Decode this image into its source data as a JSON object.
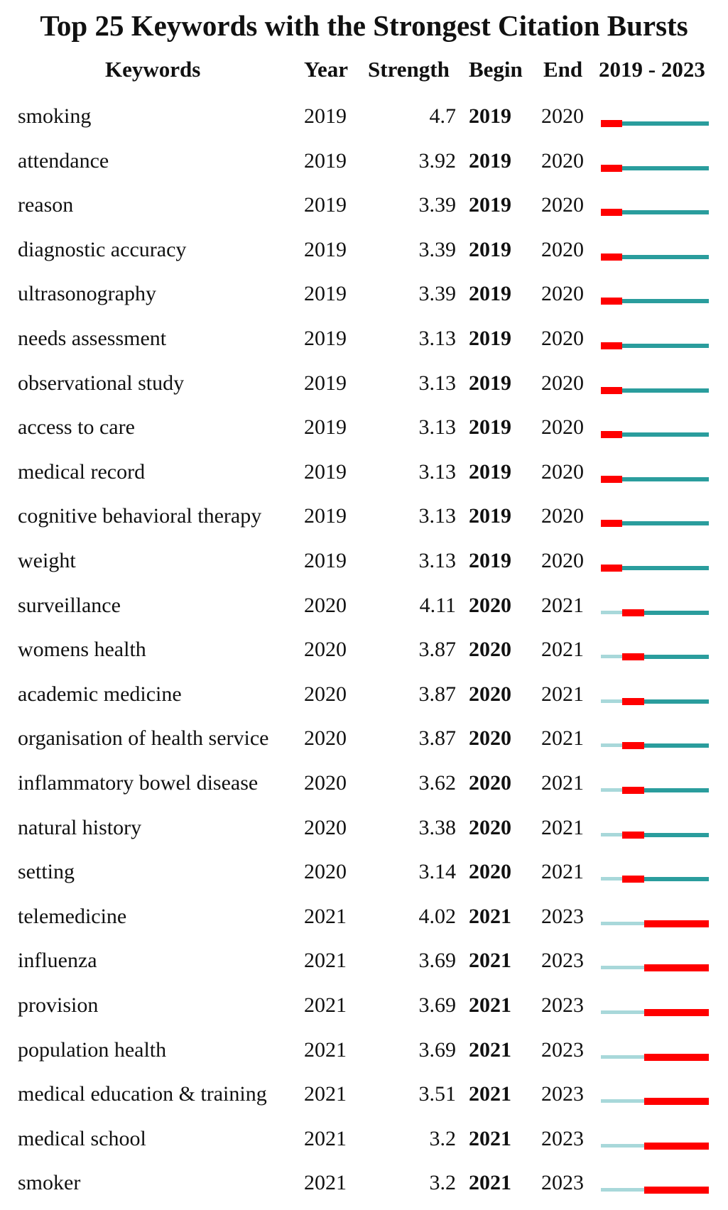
{
  "title": "Top 25 Keywords with the Strongest Citation Bursts",
  "headers": {
    "keywords": "Keywords",
    "year": "Year",
    "strength": "Strength",
    "begin": "Begin",
    "end": "End",
    "range": "2019 - 2023"
  },
  "colors": {
    "burst": "#ff0000",
    "active": "#2a9d9d",
    "inactive": "#a8d8da"
  },
  "chart_data": {
    "type": "table",
    "range": [
      2019,
      2023
    ],
    "rows": [
      {
        "keyword": "smoking",
        "year": "2019",
        "strength": "4.7",
        "begin": "2019",
        "end": "2020"
      },
      {
        "keyword": "attendance",
        "year": "2019",
        "strength": "3.92",
        "begin": "2019",
        "end": "2020"
      },
      {
        "keyword": "reason",
        "year": "2019",
        "strength": "3.39",
        "begin": "2019",
        "end": "2020"
      },
      {
        "keyword": "diagnostic accuracy",
        "year": "2019",
        "strength": "3.39",
        "begin": "2019",
        "end": "2020"
      },
      {
        "keyword": "ultrasonography",
        "year": "2019",
        "strength": "3.39",
        "begin": "2019",
        "end": "2020"
      },
      {
        "keyword": "needs assessment",
        "year": "2019",
        "strength": "3.13",
        "begin": "2019",
        "end": "2020"
      },
      {
        "keyword": "observational study",
        "year": "2019",
        "strength": "3.13",
        "begin": "2019",
        "end": "2020"
      },
      {
        "keyword": "access to care",
        "year": "2019",
        "strength": "3.13",
        "begin": "2019",
        "end": "2020"
      },
      {
        "keyword": "medical record",
        "year": "2019",
        "strength": "3.13",
        "begin": "2019",
        "end": "2020"
      },
      {
        "keyword": "cognitive behavioral therapy",
        "year": "2019",
        "strength": "3.13",
        "begin": "2019",
        "end": "2020"
      },
      {
        "keyword": "weight",
        "year": "2019",
        "strength": "3.13",
        "begin": "2019",
        "end": "2020"
      },
      {
        "keyword": "surveillance",
        "year": "2020",
        "strength": "4.11",
        "begin": "2020",
        "end": "2021"
      },
      {
        "keyword": "womens health",
        "year": "2020",
        "strength": "3.87",
        "begin": "2020",
        "end": "2021"
      },
      {
        "keyword": "academic medicine",
        "year": "2020",
        "strength": "3.87",
        "begin": "2020",
        "end": "2021"
      },
      {
        "keyword": "organisation of health service",
        "year": "2020",
        "strength": "3.87",
        "begin": "2020",
        "end": "2021"
      },
      {
        "keyword": "inflammatory bowel disease",
        "year": "2020",
        "strength": "3.62",
        "begin": "2020",
        "end": "2021"
      },
      {
        "keyword": "natural history",
        "year": "2020",
        "strength": "3.38",
        "begin": "2020",
        "end": "2021"
      },
      {
        "keyword": "setting",
        "year": "2020",
        "strength": "3.14",
        "begin": "2020",
        "end": "2021"
      },
      {
        "keyword": "telemedicine",
        "year": "2021",
        "strength": "4.02",
        "begin": "2021",
        "end": "2023"
      },
      {
        "keyword": "influenza",
        "year": "2021",
        "strength": "3.69",
        "begin": "2021",
        "end": "2023"
      },
      {
        "keyword": "provision",
        "year": "2021",
        "strength": "3.69",
        "begin": "2021",
        "end": "2023"
      },
      {
        "keyword": "population health",
        "year": "2021",
        "strength": "3.69",
        "begin": "2021",
        "end": "2023"
      },
      {
        "keyword": "medical education & training",
        "year": "2021",
        "strength": "3.51",
        "begin": "2021",
        "end": "2023"
      },
      {
        "keyword": "medical school",
        "year": "2021",
        "strength": "3.2",
        "begin": "2021",
        "end": "2023"
      },
      {
        "keyword": "smoker",
        "year": "2021",
        "strength": "3.2",
        "begin": "2021",
        "end": "2023"
      }
    ]
  }
}
